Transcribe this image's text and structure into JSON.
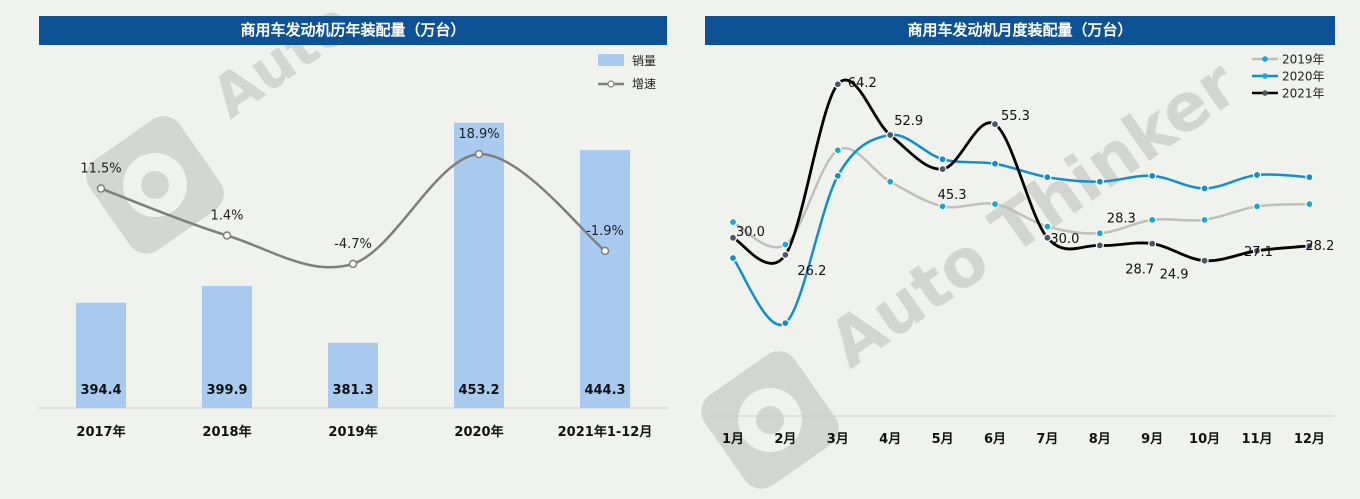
{
  "charts": {
    "left": {
      "title": "商用车发动机历年装配量（万台）",
      "legend": {
        "bar": "销量",
        "line": "增速"
      }
    },
    "right": {
      "title": "商用车发动机月度装配量（万台）"
    }
  },
  "colors": {
    "title_bg": "#0d5294",
    "bar": "#a9cbf0",
    "growth_line": "#7f7f7f",
    "s2019": "#bfbfbf",
    "s2020": "#0f8fd0",
    "s2021": "#000000",
    "watermark": "#c9cbc6"
  },
  "chart_data": [
    {
      "type": "bar",
      "title": "商用车发动机历年装配量（万台）",
      "categories": [
        "2017年",
        "2018年",
        "2019年",
        "2020年",
        "2021年1-12月"
      ],
      "series": [
        {
          "name": "销量",
          "type": "bar",
          "values": [
            394.4,
            399.9,
            381.3,
            453.2,
            444.3
          ],
          "labels": [
            "394.4",
            "399.9",
            "381.3",
            "453.2",
            "444.3"
          ]
        },
        {
          "name": "增速",
          "type": "line",
          "values": [
            11.5,
            1.4,
            -4.7,
            18.9,
            -1.9
          ],
          "labels": [
            "11.5%",
            "1.4%",
            "-4.7%",
            "18.9%",
            "-1.9%"
          ]
        }
      ],
      "legend_position": "top-right"
    },
    {
      "type": "line",
      "title": "商用车发动机月度装配量（万台）",
      "categories": [
        "1月",
        "2月",
        "3月",
        "4月",
        "5月",
        "6月",
        "7月",
        "8月",
        "9月",
        "10月",
        "11月",
        "12月"
      ],
      "series": [
        {
          "name": "2019年",
          "values": [
            33.5,
            28.5,
            49.5,
            42.5,
            37.0,
            37.5,
            32.5,
            31.0,
            34.0,
            34.0,
            37.0,
            37.5
          ],
          "labels": []
        },
        {
          "name": "2020年",
          "values": [
            25.5,
            11.0,
            43.8,
            52.9,
            47.5,
            46.5,
            43.5,
            42.5,
            43.8,
            41.0,
            44.0,
            43.5
          ],
          "labels": []
        },
        {
          "name": "2021年",
          "values": [
            30.0,
            26.2,
            64.2,
            52.9,
            45.3,
            55.3,
            30.0,
            28.3,
            28.7,
            24.9,
            27.1,
            28.2
          ],
          "labels": [
            "30.0",
            "26.2",
            "64.2",
            "52.9",
            "45.3",
            "55.3",
            "30.0",
            "28.3",
            "28.7",
            "24.9",
            "27.1",
            "28.2"
          ]
        }
      ],
      "legend_position": "top-right"
    }
  ]
}
